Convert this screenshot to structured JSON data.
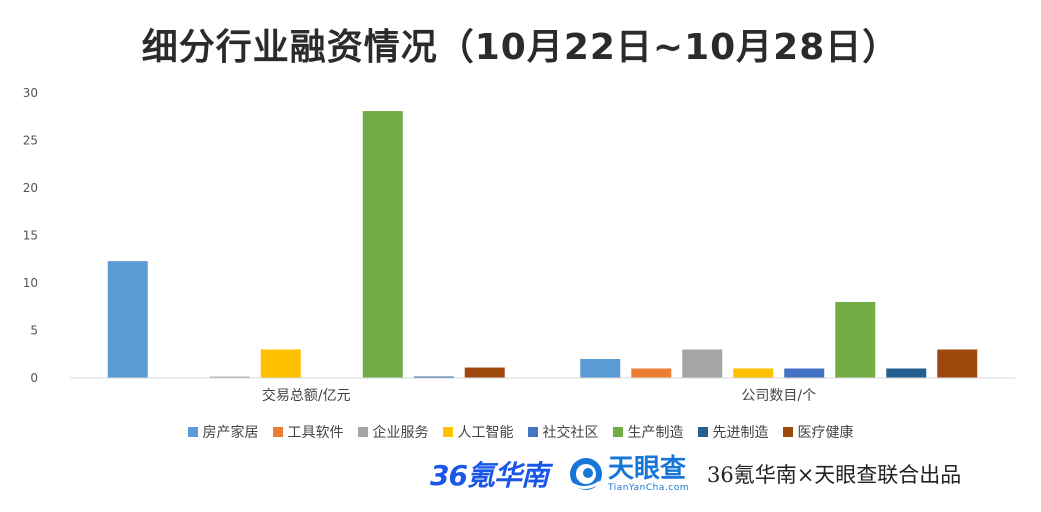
{
  "chart_data": {
    "type": "bar",
    "title": "细分行业融资情况（10月22日~10月28日）",
    "categories": [
      "交易总额/亿元",
      "公司数目/个"
    ],
    "ylim": [
      0,
      30
    ],
    "yticks": [
      0,
      5,
      10,
      15,
      20,
      25,
      30
    ],
    "grid": false,
    "legend_position": "bottom",
    "series": [
      {
        "name": "房产家居",
        "color": "#5b9bd5",
        "values": [
          12.3,
          2
        ]
      },
      {
        "name": "工具软件",
        "color": "#ed7d31",
        "values": [
          0,
          1
        ]
      },
      {
        "name": "企业服务",
        "color": "#a5a5a5",
        "values": [
          0.15,
          3
        ]
      },
      {
        "name": "人工智能",
        "color": "#ffc000",
        "values": [
          3,
          1
        ]
      },
      {
        "name": "社交社区",
        "color": "#4472c4",
        "values": [
          0,
          1
        ]
      },
      {
        "name": "生产制造",
        "color": "#70ad47",
        "values": [
          28.1,
          8
        ]
      },
      {
        "name": "先进制造",
        "color": "#255e91",
        "values": [
          0.15,
          1
        ]
      },
      {
        "name": "医疗健康",
        "color": "#9e480e",
        "values": [
          1.1,
          3
        ]
      }
    ]
  },
  "footer": {
    "logo_36kr": "36氪华南",
    "tianyancha_cn": "天眼查",
    "tianyancha_en": "TianYanCha.com",
    "credit": "36氪华南×天眼查联合出品"
  }
}
